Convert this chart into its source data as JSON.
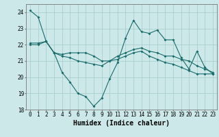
{
  "x": [
    0,
    1,
    2,
    3,
    4,
    5,
    6,
    7,
    8,
    9,
    10,
    11,
    12,
    13,
    14,
    15,
    16,
    17,
    18,
    19,
    20,
    21,
    22,
    23
  ],
  "line1": [
    24.1,
    23.7,
    22.2,
    21.5,
    20.3,
    19.7,
    19.0,
    18.8,
    18.2,
    18.7,
    19.9,
    20.9,
    22.4,
    23.5,
    22.8,
    22.7,
    22.9,
    22.3,
    22.3,
    21.2,
    20.5,
    21.6,
    20.6,
    20.2
  ],
  "line2": [
    22.1,
    22.1,
    22.2,
    21.5,
    21.4,
    21.5,
    21.5,
    21.5,
    21.3,
    21.0,
    21.0,
    21.3,
    21.5,
    21.7,
    21.8,
    21.6,
    21.5,
    21.3,
    21.3,
    21.1,
    21.0,
    20.7,
    20.5,
    20.3
  ],
  "line3": [
    22.0,
    22.0,
    22.2,
    21.5,
    21.3,
    21.2,
    21.0,
    20.9,
    20.8,
    20.7,
    21.0,
    21.1,
    21.3,
    21.5,
    21.6,
    21.3,
    21.1,
    20.9,
    20.8,
    20.6,
    20.4,
    20.2,
    20.2,
    20.2
  ],
  "bg_color": "#cce8e8",
  "grid_color": "#aacfcf",
  "line_color": "#1a6b6b",
  "ylim": [
    18,
    24.5
  ],
  "yticks": [
    18,
    19,
    20,
    21,
    22,
    23,
    24
  ],
  "xticks": [
    0,
    1,
    2,
    3,
    4,
    5,
    6,
    7,
    8,
    9,
    10,
    11,
    12,
    13,
    14,
    15,
    16,
    17,
    18,
    19,
    20,
    21,
    22,
    23
  ],
  "xlabel": "Humidex (Indice chaleur)",
  "xlabel_fontsize": 7,
  "tick_fontsize": 5.5,
  "figwidth": 3.2,
  "figheight": 2.0,
  "dpi": 100
}
